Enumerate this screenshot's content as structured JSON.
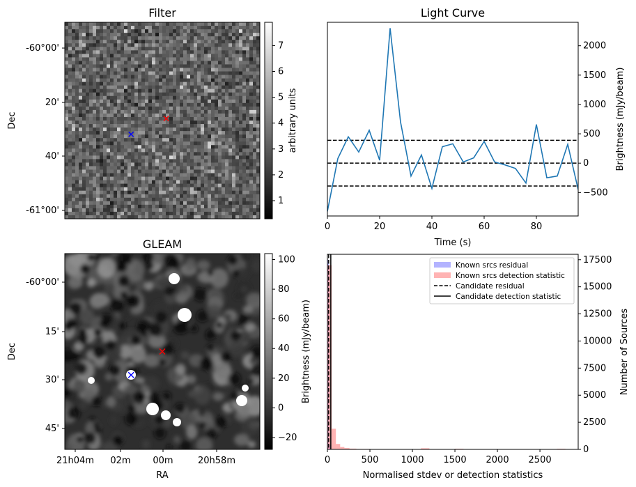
{
  "colors": {
    "line": "#1f77b4",
    "known_residual": "#8080ff",
    "known_detection": "#ff8080",
    "candidate": "#000000",
    "marker_red": "#ff0000",
    "marker_blue": "#0000ff"
  },
  "chart_data": [
    {
      "type": "heatmap",
      "title": "Filter",
      "ylabel": "Dec",
      "yticks": [
        "-60°00'",
        "20'",
        "40'",
        "-61°00'"
      ],
      "colorbar": {
        "label": "arbitrary units",
        "range": [
          0.3,
          7.9
        ],
        "ticks": [
          1,
          2,
          3,
          4,
          5,
          6,
          7
        ],
        "colormap": "gray"
      },
      "markers": [
        {
          "color": "red",
          "symbol": "x",
          "pos": [
            0.52,
            0.49
          ]
        },
        {
          "color": "blue",
          "symbol": "x",
          "pos": [
            0.34,
            0.57
          ]
        }
      ]
    },
    {
      "type": "line",
      "title": "Light Curve",
      "xlabel": "Time (s)",
      "ylabel": "Brightness (mJy/beam)",
      "xlim": [
        0,
        96
      ],
      "ylim": [
        -900,
        2400
      ],
      "xticks": [
        0,
        20,
        40,
        60,
        80
      ],
      "yticks": [
        -500,
        0,
        500,
        1000,
        1500,
        2000
      ],
      "x": [
        0,
        4,
        8,
        12,
        16,
        20,
        24,
        28,
        32,
        36,
        40,
        44,
        48,
        52,
        56,
        60,
        64,
        68,
        72,
        76,
        80,
        84,
        88,
        92,
        96
      ],
      "y": [
        -820,
        80,
        450,
        190,
        560,
        50,
        2300,
        700,
        -220,
        140,
        -430,
        280,
        330,
        20,
        90,
        370,
        20,
        -30,
        -90,
        -340,
        660,
        -250,
        -220,
        320,
        -450
      ],
      "hlines": [
        390,
        0,
        -390
      ],
      "hline_style": "dashed"
    },
    {
      "type": "heatmap",
      "title": "GLEAM",
      "xlabel": "RA",
      "ylabel": "Dec",
      "xticks": [
        "21h04m",
        "02m",
        "00m",
        "20h58m"
      ],
      "yticks": [
        "-60°00'",
        "15'",
        "30'",
        "45'"
      ],
      "colorbar": {
        "label": "Brightness (mJy/beam)",
        "range": [
          -28,
          104
        ],
        "ticks": [
          -20,
          0,
          20,
          40,
          60,
          80,
          100
        ],
        "colormap": "gray"
      },
      "markers": [
        {
          "color": "red",
          "symbol": "x",
          "pos": [
            0.5,
            0.5
          ]
        },
        {
          "color": "blue",
          "symbol": "x",
          "pos": [
            0.34,
            0.62
          ]
        }
      ]
    },
    {
      "type": "bar",
      "xlabel": "Normalised stdev or detection statistics",
      "ylabel": "Number of Sources",
      "xlim": [
        0,
        2950
      ],
      "ylim": [
        0,
        18000
      ],
      "xticks": [
        0,
        500,
        1000,
        1500,
        2000,
        2500
      ],
      "yticks": [
        0,
        2500,
        5000,
        7500,
        10000,
        12500,
        15000,
        17500
      ],
      "legend_position": "top-right",
      "series": [
        {
          "name": "Known srcs residual",
          "bins": [
            [
              0,
              20,
              17500
            ],
            [
              20,
              40,
              400
            ]
          ]
        },
        {
          "name": "Known srcs detection statistic",
          "bins": [
            [
              0,
              50,
              17000
            ],
            [
              50,
              100,
              1900
            ],
            [
              100,
              150,
              500
            ],
            [
              150,
              200,
              220
            ],
            [
              200,
              260,
              120
            ],
            [
              260,
              340,
              70
            ],
            [
              340,
              500,
              40
            ],
            [
              500,
              700,
              25
            ],
            [
              700,
              1100,
              15
            ],
            [
              1100,
              1200,
              100
            ],
            [
              1200,
              1500,
              10
            ],
            [
              1500,
              1600,
              60
            ],
            [
              1600,
              2700,
              8
            ],
            [
              2700,
              2800,
              60
            ]
          ]
        }
      ],
      "vlines": [
        {
          "name": "Candidate residual",
          "x": 15,
          "style": "dashed"
        },
        {
          "name": "Candidate detection statistic",
          "x": 40,
          "style": "solid"
        }
      ]
    }
  ]
}
